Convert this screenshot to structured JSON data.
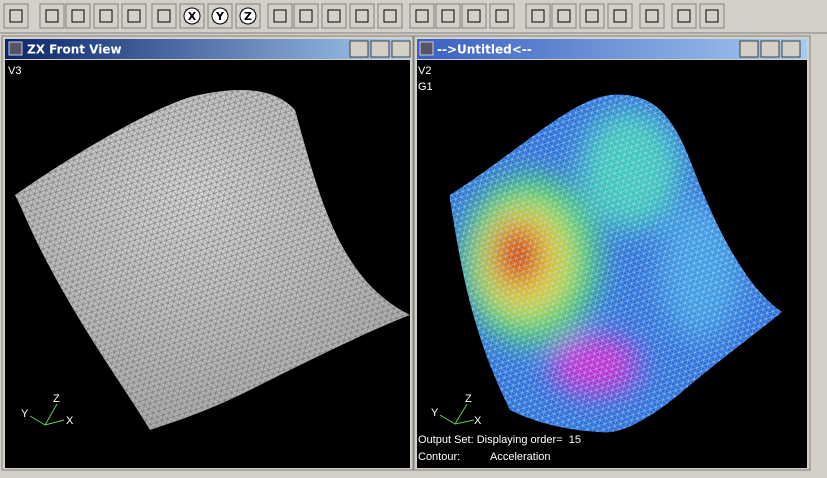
{
  "toolbar": {
    "axis_buttons": [
      "X",
      "Y",
      "Z"
    ]
  },
  "windows": [
    {
      "title": "ZX Front View",
      "view_labels": [
        "V3"
      ],
      "triad": {
        "z": "Z",
        "y": "Y",
        "x": "X"
      }
    },
    {
      "title": "-->Untitled<--",
      "view_labels": [
        "V2",
        "G1"
      ],
      "triad": {
        "z": "Z",
        "y": "Y",
        "x": "X"
      },
      "status": {
        "output_set": "Output Set: Displaying order=  15",
        "contour_label": "Contour:",
        "contour_value": "Acceleration"
      }
    }
  ]
}
